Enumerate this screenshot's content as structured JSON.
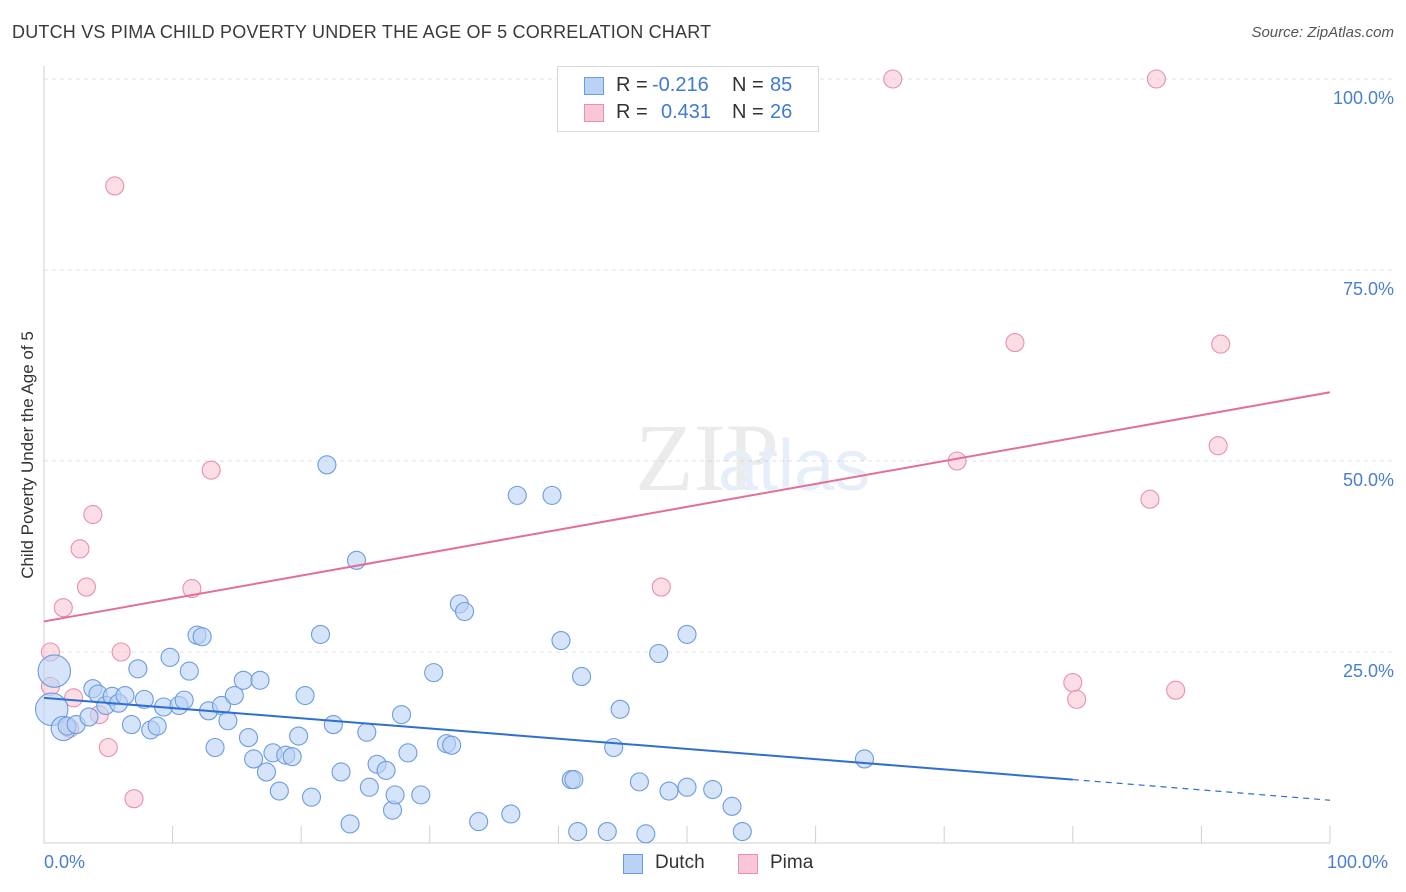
{
  "title": "DUTCH VS PIMA CHILD POVERTY UNDER THE AGE OF 5 CORRELATION CHART",
  "source": "Source: ZipAtlas.com",
  "watermark": {
    "zip": "ZIP",
    "atlas": "atlas"
  },
  "colors": {
    "dutch_fill": "#b9d2f5",
    "dutch_stroke": "#6c9ce0",
    "dutch_line": "#2f6fd1",
    "pima_fill": "#f8c6d6",
    "pima_stroke": "#e891ab",
    "pima_line": "#e26f96",
    "tick_text": "#4a7fd0"
  },
  "legend": {
    "rows": [
      {
        "r_label": "R =",
        "r_value": "-0.216",
        "n_label": "N =",
        "n_value": "85"
      },
      {
        "r_label": "R =",
        "r_value": "0.431",
        "n_label": "N =",
        "n_value": "26"
      }
    ]
  },
  "bottom_legend": [
    "Dutch",
    "Pima"
  ],
  "chart_data": {
    "type": "scatter",
    "title": "DUTCH VS PIMA CHILD POVERTY UNDER THE AGE OF 5 CORRELATION CHART",
    "xlabel": "",
    "ylabel": "Child Poverty Under the Age of 5",
    "xlim": [
      0,
      100
    ],
    "ylim": [
      0,
      105
    ],
    "x_tick_labels": [
      "0.0%",
      "100.0%"
    ],
    "y_tick_labels": [
      "25.0%",
      "50.0%",
      "75.0%",
      "100.0%"
    ],
    "y_ticks": [
      25,
      50,
      75,
      100
    ],
    "grid": "horizontal dashed",
    "legend_position": "top-center",
    "series": [
      {
        "name": "Dutch",
        "r": -0.216,
        "n": 85,
        "trend": {
          "x": [
            0,
            80,
            100
          ],
          "y": [
            19.0,
            8.3,
            5.6
          ],
          "solid_until": 80
        },
        "points": [
          [
            0.8,
            22.5,
            2
          ],
          [
            0.6,
            17.5,
            2
          ],
          [
            1.5,
            15,
            1.5
          ],
          [
            1.8,
            15.3,
            1
          ],
          [
            2.5,
            15.5,
            1
          ],
          [
            3.5,
            16.5,
            1
          ],
          [
            3.8,
            20.2,
            1
          ],
          [
            4.2,
            19.5,
            1
          ],
          [
            4.8,
            18,
            1
          ],
          [
            5.3,
            19.2,
            1
          ],
          [
            5.8,
            18.3,
            1
          ],
          [
            6.3,
            19.3,
            1
          ],
          [
            6.8,
            15.5,
            1
          ],
          [
            7.3,
            22.8,
            1
          ],
          [
            7.8,
            18.8,
            1
          ],
          [
            8.3,
            14.8,
            1
          ],
          [
            8.8,
            15.3,
            1
          ],
          [
            9.3,
            17.8,
            1
          ],
          [
            9.8,
            24.3,
            1
          ],
          [
            10.5,
            18,
            1
          ],
          [
            10.9,
            18.7,
            1
          ],
          [
            11.3,
            22.5,
            1
          ],
          [
            11.9,
            27.2,
            1
          ],
          [
            12.3,
            27,
            1
          ],
          [
            12.8,
            17.3,
            1
          ],
          [
            13.3,
            12.5,
            1
          ],
          [
            13.8,
            18,
            1
          ],
          [
            14.3,
            16,
            1
          ],
          [
            14.8,
            19.3,
            1
          ],
          [
            15.5,
            21.3,
            1
          ],
          [
            15.9,
            13.8,
            1
          ],
          [
            16.3,
            11,
            1
          ],
          [
            16.8,
            21.3,
            1
          ],
          [
            17.3,
            9.3,
            1
          ],
          [
            17.8,
            11.8,
            1
          ],
          [
            18.3,
            6.8,
            1
          ],
          [
            18.8,
            11.5,
            1
          ],
          [
            19.3,
            11.3,
            1
          ],
          [
            19.8,
            14,
            1
          ],
          [
            20.3,
            19.3,
            1
          ],
          [
            20.8,
            6,
            1
          ],
          [
            21.5,
            27.3,
            1
          ],
          [
            22,
            49.5,
            1
          ],
          [
            22.5,
            15.5,
            1
          ],
          [
            23.1,
            9.3,
            1
          ],
          [
            23.8,
            2.5,
            1
          ],
          [
            24.3,
            37,
            1
          ],
          [
            25.1,
            14.5,
            1
          ],
          [
            25.3,
            7.3,
            1
          ],
          [
            25.9,
            10.3,
            1
          ],
          [
            26.6,
            9.5,
            1
          ],
          [
            27.1,
            4.3,
            1
          ],
          [
            27.3,
            6.3,
            1
          ],
          [
            27.8,
            16.8,
            1
          ],
          [
            28.3,
            11.8,
            1
          ],
          [
            29.3,
            6.3,
            1
          ],
          [
            30.3,
            22.3,
            1
          ],
          [
            31.3,
            13,
            1
          ],
          [
            31.7,
            12.8,
            1
          ],
          [
            32.3,
            31.3,
            1
          ],
          [
            32.7,
            30.3,
            1
          ],
          [
            33.8,
            2.8,
            1
          ],
          [
            36.3,
            3.8,
            1
          ],
          [
            36.8,
            45.5,
            1
          ],
          [
            39.5,
            45.5,
            1
          ],
          [
            40.2,
            26.5,
            1
          ],
          [
            41,
            8.3,
            1
          ],
          [
            41.2,
            8.3,
            1
          ],
          [
            41.5,
            1.5,
            1
          ],
          [
            41.8,
            21.8,
            1
          ],
          [
            43.8,
            1.5,
            1
          ],
          [
            44.3,
            12.5,
            1
          ],
          [
            44.8,
            17.5,
            1
          ],
          [
            46.3,
            8,
            1
          ],
          [
            46.8,
            1.2,
            1
          ],
          [
            47.8,
            24.8,
            1
          ],
          [
            48.6,
            6.8,
            1
          ],
          [
            50,
            27.3,
            1
          ],
          [
            50,
            7.3,
            1
          ],
          [
            52,
            7,
            1
          ],
          [
            53.5,
            4.8,
            1
          ],
          [
            54.3,
            1.5,
            1
          ],
          [
            63.8,
            11,
            1
          ]
        ]
      },
      {
        "name": "Pima",
        "r": 0.431,
        "n": 26,
        "trend": {
          "x": [
            0,
            100
          ],
          "y": [
            29.0,
            59.0
          ]
        },
        "points": [
          [
            0.5,
            25,
            1
          ],
          [
            0.5,
            20.5,
            1
          ],
          [
            1.5,
            30.8,
            1
          ],
          [
            2,
            15,
            1
          ],
          [
            2.3,
            19,
            1
          ],
          [
            2.8,
            38.5,
            1
          ],
          [
            3.3,
            33.5,
            1
          ],
          [
            3.8,
            43,
            1
          ],
          [
            4.3,
            16.8,
            1
          ],
          [
            5,
            12.5,
            1
          ],
          [
            5.5,
            86,
            1
          ],
          [
            6,
            25,
            1
          ],
          [
            7,
            5.8,
            1
          ],
          [
            11.5,
            33.3,
            1
          ],
          [
            13,
            48.8,
            1
          ],
          [
            48,
            33.5,
            1
          ],
          [
            66,
            100,
            1
          ],
          [
            71,
            50,
            1
          ],
          [
            75.5,
            65.5,
            1
          ],
          [
            80,
            21,
            1
          ],
          [
            80.3,
            18.8,
            1
          ],
          [
            86,
            45,
            1
          ],
          [
            88,
            20,
            1
          ],
          [
            86.5,
            100,
            1
          ],
          [
            91.3,
            52,
            1
          ],
          [
            91.5,
            65.3,
            1
          ]
        ]
      }
    ]
  }
}
